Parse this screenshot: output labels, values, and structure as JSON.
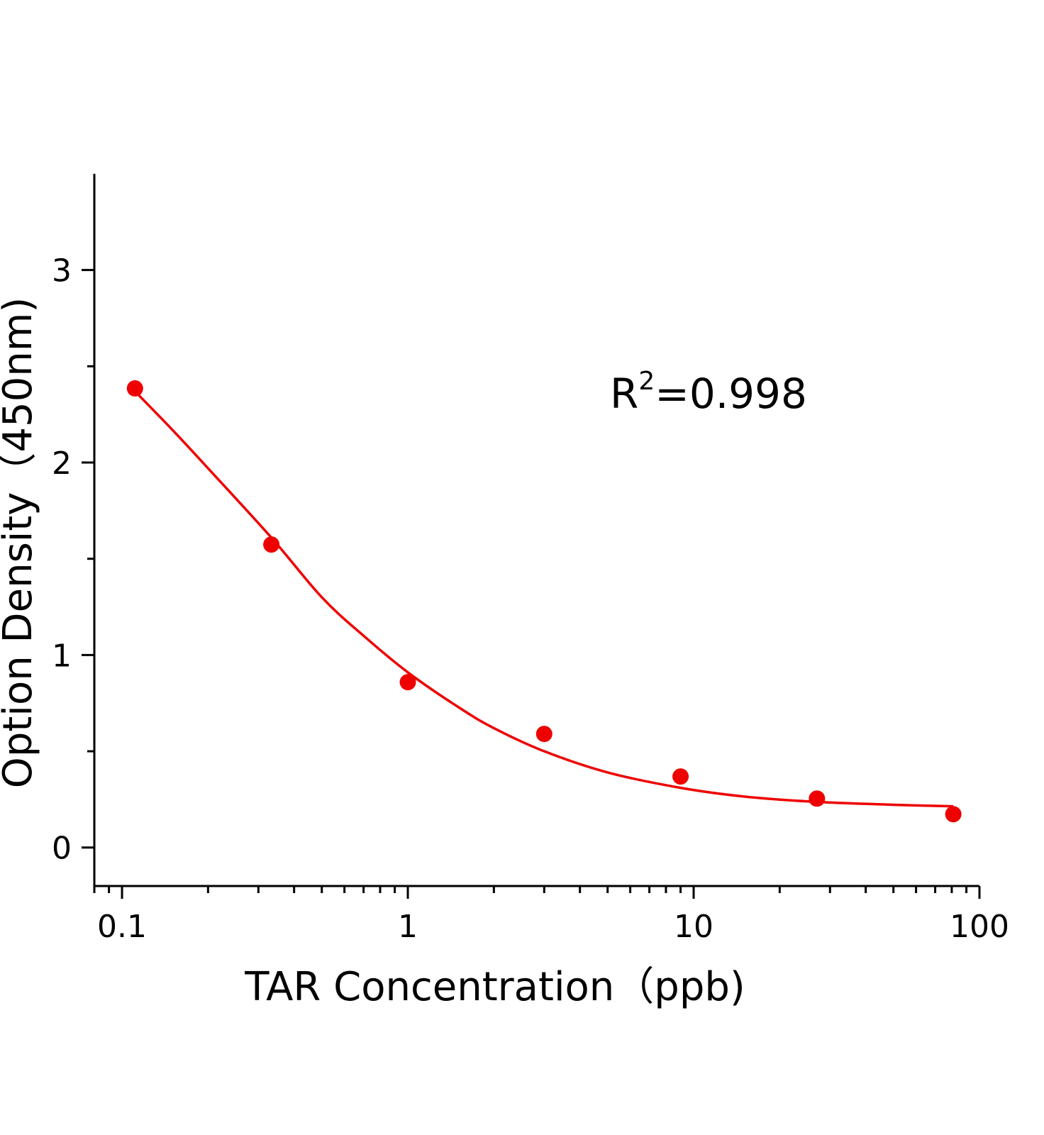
{
  "chart_data": {
    "type": "scatter",
    "title": "",
    "xlabel": "TAR Concentration（ppb)",
    "ylabel": "Option Density（450nm)",
    "x_scale": "log",
    "xlim": [
      0.08,
      100
    ],
    "ylim": [
      -0.2,
      3.5
    ],
    "x_ticks": [
      0.1,
      1,
      10,
      100
    ],
    "x_tick_labels": [
      "0.1",
      "1",
      "10",
      "100"
    ],
    "y_ticks": [
      0,
      1,
      2,
      3
    ],
    "y_tick_labels": [
      "0",
      "1",
      "2",
      "3"
    ],
    "grid": false,
    "legend": "none",
    "series": [
      {
        "type": "scatter",
        "color": "#ee0000",
        "points": [
          {
            "x": 0.111,
            "y": 2.385
          },
          {
            "x": 0.333,
            "y": 1.574
          },
          {
            "x": 1,
            "y": 0.859
          },
          {
            "x": 3,
            "y": 0.59
          },
          {
            "x": 9,
            "y": 0.369
          },
          {
            "x": 27,
            "y": 0.254
          },
          {
            "x": 81,
            "y": 0.173
          }
        ]
      },
      {
        "type": "line",
        "color": "#ee0000",
        "points": [
          {
            "x": 0.111,
            "y": 2.37
          },
          {
            "x": 0.15,
            "y": 2.17
          },
          {
            "x": 0.2,
            "y": 1.97
          },
          {
            "x": 0.333,
            "y": 1.61
          },
          {
            "x": 0.5,
            "y": 1.3
          },
          {
            "x": 0.7,
            "y": 1.1
          },
          {
            "x": 1,
            "y": 0.91
          },
          {
            "x": 1.5,
            "y": 0.73
          },
          {
            "x": 2,
            "y": 0.62
          },
          {
            "x": 3,
            "y": 0.5
          },
          {
            "x": 5,
            "y": 0.39
          },
          {
            "x": 9,
            "y": 0.31
          },
          {
            "x": 15,
            "y": 0.265
          },
          {
            "x": 27,
            "y": 0.237
          },
          {
            "x": 50,
            "y": 0.222
          },
          {
            "x": 81,
            "y": 0.214
          }
        ]
      }
    ],
    "annotation": {
      "base": "R",
      "sup": "2",
      "text": "=0.998"
    }
  }
}
